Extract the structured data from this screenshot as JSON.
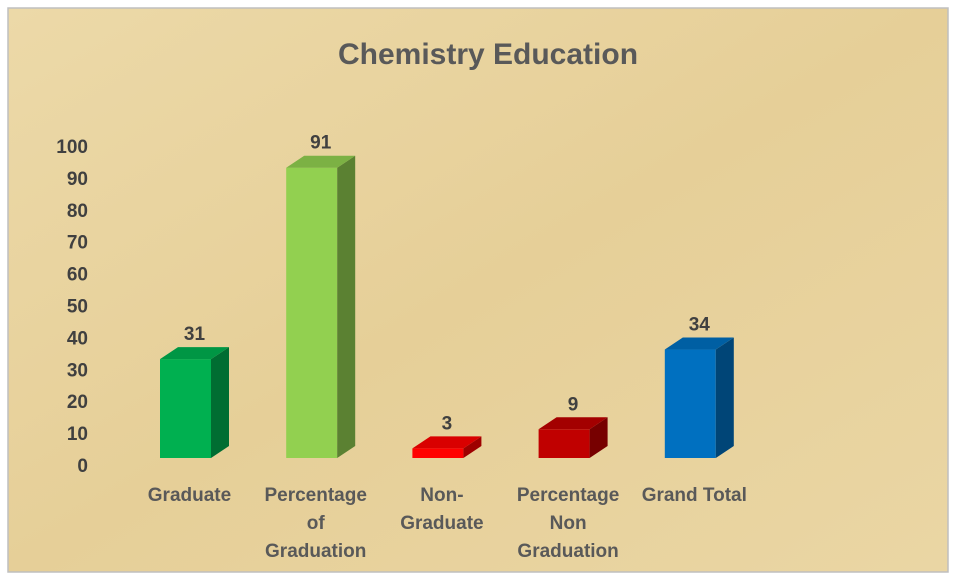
{
  "chart_data": {
    "type": "bar3d",
    "title": "Chemistry Education",
    "categories": [
      "Graduate",
      "Percentage of Graduation",
      "Non-Graduate",
      "Percentage Non Graduation",
      "Grand Total"
    ],
    "values": [
      31,
      91,
      3,
      9,
      34
    ],
    "colors": [
      "#00b050",
      "#92d050",
      "#ff0000",
      "#c00000",
      "#0070c0"
    ],
    "ylim": [
      0,
      100
    ],
    "yticks": [
      0,
      10,
      20,
      30,
      40,
      50,
      60,
      70,
      80,
      90,
      100
    ],
    "grid": false
  }
}
